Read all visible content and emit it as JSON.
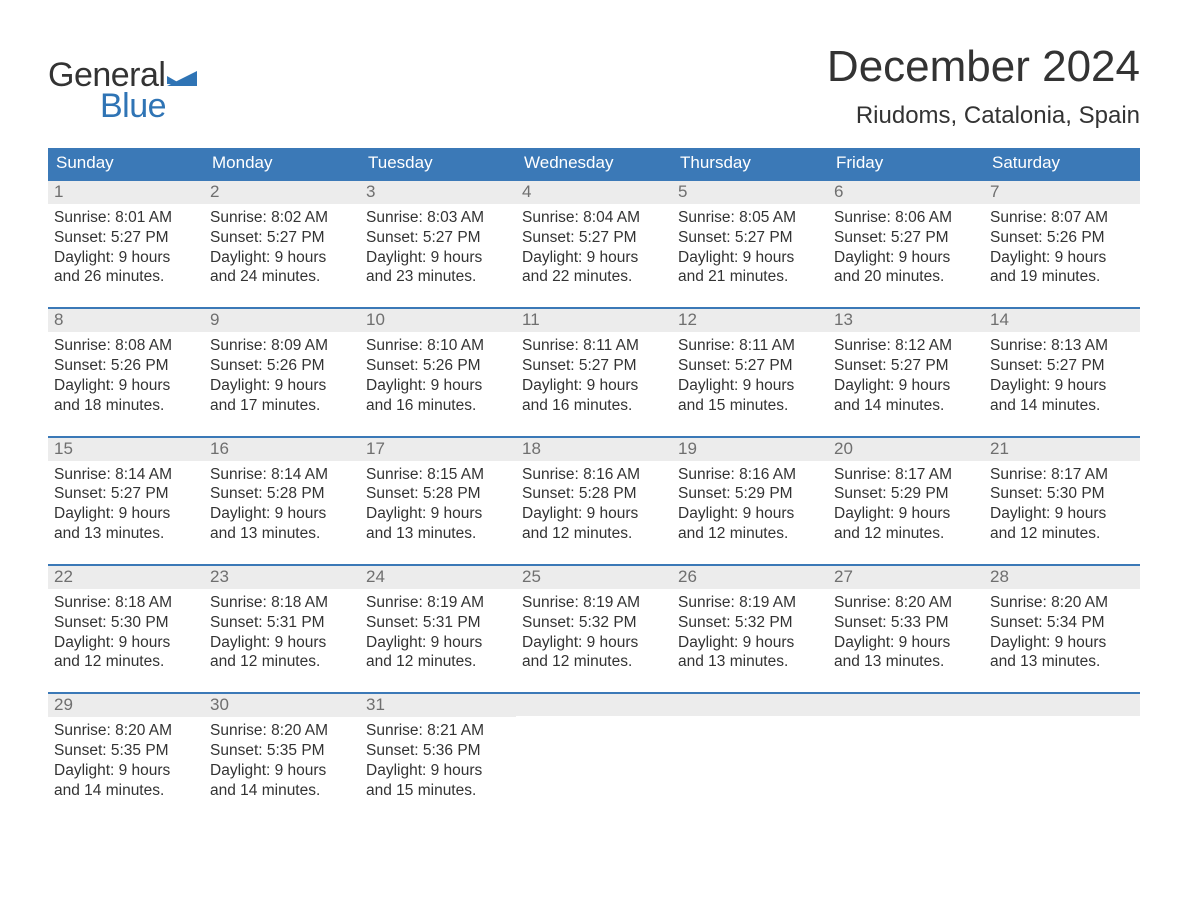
{
  "brand": {
    "word1": "General",
    "word2": "Blue",
    "flag_color": "#2f74b5"
  },
  "title": "December 2024",
  "location": "Riudoms, Catalonia, Spain",
  "colors": {
    "header_bg": "#3b79b7",
    "header_text": "#ffffff",
    "daynum_bg": "#ececec",
    "daynum_text": "#6f6f6f",
    "body_text": "#333333",
    "accent": "#2f74b5",
    "page_bg": "#ffffff"
  },
  "typography": {
    "title_fontsize": 44,
    "location_fontsize": 24,
    "dayhead_fontsize": 17,
    "cell_fontsize": 15.5
  },
  "layout": {
    "columns": 7,
    "rows": 5
  },
  "day_names": [
    "Sunday",
    "Monday",
    "Tuesday",
    "Wednesday",
    "Thursday",
    "Friday",
    "Saturday"
  ],
  "weeks": [
    [
      {
        "n": "1",
        "sunrise": "8:01 AM",
        "sunset": "5:27 PM",
        "dl1": "Daylight: 9 hours",
        "dl2": "and 26 minutes."
      },
      {
        "n": "2",
        "sunrise": "8:02 AM",
        "sunset": "5:27 PM",
        "dl1": "Daylight: 9 hours",
        "dl2": "and 24 minutes."
      },
      {
        "n": "3",
        "sunrise": "8:03 AM",
        "sunset": "5:27 PM",
        "dl1": "Daylight: 9 hours",
        "dl2": "and 23 minutes."
      },
      {
        "n": "4",
        "sunrise": "8:04 AM",
        "sunset": "5:27 PM",
        "dl1": "Daylight: 9 hours",
        "dl2": "and 22 minutes."
      },
      {
        "n": "5",
        "sunrise": "8:05 AM",
        "sunset": "5:27 PM",
        "dl1": "Daylight: 9 hours",
        "dl2": "and 21 minutes."
      },
      {
        "n": "6",
        "sunrise": "8:06 AM",
        "sunset": "5:27 PM",
        "dl1": "Daylight: 9 hours",
        "dl2": "and 20 minutes."
      },
      {
        "n": "7",
        "sunrise": "8:07 AM",
        "sunset": "5:26 PM",
        "dl1": "Daylight: 9 hours",
        "dl2": "and 19 minutes."
      }
    ],
    [
      {
        "n": "8",
        "sunrise": "8:08 AM",
        "sunset": "5:26 PM",
        "dl1": "Daylight: 9 hours",
        "dl2": "and 18 minutes."
      },
      {
        "n": "9",
        "sunrise": "8:09 AM",
        "sunset": "5:26 PM",
        "dl1": "Daylight: 9 hours",
        "dl2": "and 17 minutes."
      },
      {
        "n": "10",
        "sunrise": "8:10 AM",
        "sunset": "5:26 PM",
        "dl1": "Daylight: 9 hours",
        "dl2": "and 16 minutes."
      },
      {
        "n": "11",
        "sunrise": "8:11 AM",
        "sunset": "5:27 PM",
        "dl1": "Daylight: 9 hours",
        "dl2": "and 16 minutes."
      },
      {
        "n": "12",
        "sunrise": "8:11 AM",
        "sunset": "5:27 PM",
        "dl1": "Daylight: 9 hours",
        "dl2": "and 15 minutes."
      },
      {
        "n": "13",
        "sunrise": "8:12 AM",
        "sunset": "5:27 PM",
        "dl1": "Daylight: 9 hours",
        "dl2": "and 14 minutes."
      },
      {
        "n": "14",
        "sunrise": "8:13 AM",
        "sunset": "5:27 PM",
        "dl1": "Daylight: 9 hours",
        "dl2": "and 14 minutes."
      }
    ],
    [
      {
        "n": "15",
        "sunrise": "8:14 AM",
        "sunset": "5:27 PM",
        "dl1": "Daylight: 9 hours",
        "dl2": "and 13 minutes."
      },
      {
        "n": "16",
        "sunrise": "8:14 AM",
        "sunset": "5:28 PM",
        "dl1": "Daylight: 9 hours",
        "dl2": "and 13 minutes."
      },
      {
        "n": "17",
        "sunrise": "8:15 AM",
        "sunset": "5:28 PM",
        "dl1": "Daylight: 9 hours",
        "dl2": "and 13 minutes."
      },
      {
        "n": "18",
        "sunrise": "8:16 AM",
        "sunset": "5:28 PM",
        "dl1": "Daylight: 9 hours",
        "dl2": "and 12 minutes."
      },
      {
        "n": "19",
        "sunrise": "8:16 AM",
        "sunset": "5:29 PM",
        "dl1": "Daylight: 9 hours",
        "dl2": "and 12 minutes."
      },
      {
        "n": "20",
        "sunrise": "8:17 AM",
        "sunset": "5:29 PM",
        "dl1": "Daylight: 9 hours",
        "dl2": "and 12 minutes."
      },
      {
        "n": "21",
        "sunrise": "8:17 AM",
        "sunset": "5:30 PM",
        "dl1": "Daylight: 9 hours",
        "dl2": "and 12 minutes."
      }
    ],
    [
      {
        "n": "22",
        "sunrise": "8:18 AM",
        "sunset": "5:30 PM",
        "dl1": "Daylight: 9 hours",
        "dl2": "and 12 minutes."
      },
      {
        "n": "23",
        "sunrise": "8:18 AM",
        "sunset": "5:31 PM",
        "dl1": "Daylight: 9 hours",
        "dl2": "and 12 minutes."
      },
      {
        "n": "24",
        "sunrise": "8:19 AM",
        "sunset": "5:31 PM",
        "dl1": "Daylight: 9 hours",
        "dl2": "and 12 minutes."
      },
      {
        "n": "25",
        "sunrise": "8:19 AM",
        "sunset": "5:32 PM",
        "dl1": "Daylight: 9 hours",
        "dl2": "and 12 minutes."
      },
      {
        "n": "26",
        "sunrise": "8:19 AM",
        "sunset": "5:32 PM",
        "dl1": "Daylight: 9 hours",
        "dl2": "and 13 minutes."
      },
      {
        "n": "27",
        "sunrise": "8:20 AM",
        "sunset": "5:33 PM",
        "dl1": "Daylight: 9 hours",
        "dl2": "and 13 minutes."
      },
      {
        "n": "28",
        "sunrise": "8:20 AM",
        "sunset": "5:34 PM",
        "dl1": "Daylight: 9 hours",
        "dl2": "and 13 minutes."
      }
    ],
    [
      {
        "n": "29",
        "sunrise": "8:20 AM",
        "sunset": "5:35 PM",
        "dl1": "Daylight: 9 hours",
        "dl2": "and 14 minutes."
      },
      {
        "n": "30",
        "sunrise": "8:20 AM",
        "sunset": "5:35 PM",
        "dl1": "Daylight: 9 hours",
        "dl2": "and 14 minutes."
      },
      {
        "n": "31",
        "sunrise": "8:21 AM",
        "sunset": "5:36 PM",
        "dl1": "Daylight: 9 hours",
        "dl2": "and 15 minutes."
      },
      null,
      null,
      null,
      null
    ]
  ]
}
